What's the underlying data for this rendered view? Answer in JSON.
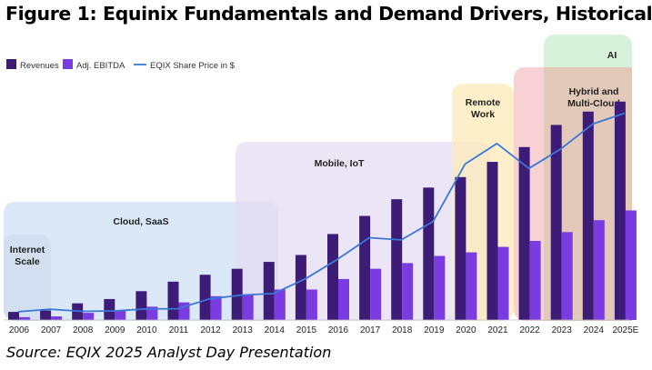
{
  "figure": {
    "title": "Figure 1: Equinix Fundamentals and Demand Drivers, Historical",
    "source": "Source: EQIX 2025 Analyst Day Presentation"
  },
  "chart_data": {
    "type": "bar",
    "categories": [
      "2006",
      "2007",
      "2008",
      "2009",
      "2010",
      "2011",
      "2012",
      "2013",
      "2014",
      "2015",
      "2016",
      "2017",
      "2018",
      "2019",
      "2020",
      "2021",
      "2022",
      "2023",
      "2024",
      "2025E"
    ],
    "series": [
      {
        "name": "Revenues",
        "color": "#3d1c78",
        "values": [
          0.34,
          0.4,
          0.7,
          0.88,
          1.21,
          1.61,
          1.9,
          2.15,
          2.44,
          2.73,
          3.61,
          4.37,
          5.07,
          5.56,
          6.0,
          6.64,
          7.26,
          8.19,
          8.75,
          9.17
        ]
      },
      {
        "name": "Adj. EBITDA",
        "color": "#7a3be0",
        "values": [
          0.12,
          0.15,
          0.3,
          0.4,
          0.56,
          0.74,
          1.0,
          1.05,
          1.28,
          1.28,
          1.72,
          2.15,
          2.39,
          2.69,
          2.84,
          3.07,
          3.32,
          3.69,
          4.19,
          4.6
        ]
      },
      {
        "name": "EQIX Share Price in $",
        "type": "line",
        "color": "#3a78d8",
        "values": [
          38,
          50,
          40,
          42,
          51,
          52,
          98,
          115,
          122,
          190,
          280,
          380,
          370,
          455,
          720,
          815,
          700,
          790,
          905,
          955
        ]
      }
    ],
    "xlabel": "",
    "ylabel": "",
    "y_bars_max": 10,
    "y_line_max": 1100,
    "legend_position": "top-left",
    "grid": false,
    "annotations": [
      {
        "label": "Internet Scale",
        "color": "#c9ced8",
        "start": "2006",
        "end": "2007"
      },
      {
        "label": "Cloud, SaaS",
        "color": "#cfe0f6",
        "start": "2006",
        "end": "2014"
      },
      {
        "label": "Mobile, IoT",
        "color": "#e4dcf2",
        "start": "2013",
        "end": "2021"
      },
      {
        "label": "Remote Work",
        "color": "#fce9b8",
        "start": "2020",
        "end": "2021"
      },
      {
        "label": "Hybrid and Multi-Cloud",
        "color": "#f6c9cb",
        "start": "2022",
        "end": "2025E"
      },
      {
        "label": "AI",
        "color": "#d4f0d6",
        "start": "2023",
        "end": "2025E"
      }
    ]
  }
}
